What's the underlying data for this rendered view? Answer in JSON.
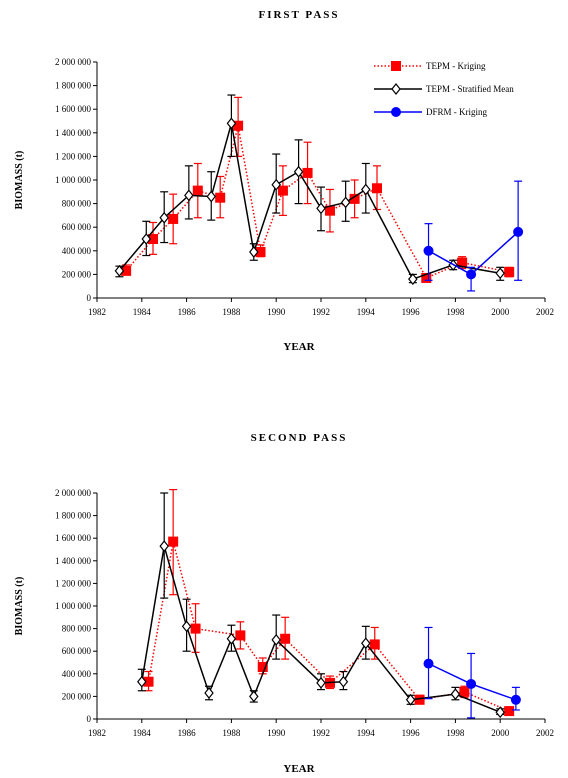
{
  "chart_data": [
    {
      "type": "line",
      "title": "FIRST PASS",
      "xlabel": "YEAR",
      "ylabel": "BIOMASS  (t)",
      "xlim": [
        1982,
        2002
      ],
      "ylim": [
        0,
        2000000
      ],
      "xticks": [
        1982,
        1984,
        1986,
        1988,
        1990,
        1992,
        1994,
        1996,
        1998,
        2000,
        2002
      ],
      "xtick_labels": [
        "1982",
        "1984",
        "1986",
        "1988",
        "1990",
        "1992",
        "1994",
        "1996",
        "1998",
        "2000",
        "2002"
      ],
      "yticks": [
        0,
        200000,
        400000,
        600000,
        800000,
        1000000,
        1200000,
        1400000,
        1600000,
        1800000,
        2000000
      ],
      "ytick_labels": [
        "0",
        "200 000",
        "400 000",
        "600 000",
        "800 000",
        "1 000 000",
        "1 200 000",
        "1 400 000",
        "1 600 000",
        "1 800 000",
        "2 000 000"
      ],
      "legend_position": "top-right",
      "series": [
        {
          "name": "TEPM  - Kriging",
          "color": "#ff0000",
          "line_style": "dotted",
          "marker": "square",
          "x": [
            1983.3,
            1984.5,
            1985.4,
            1986.5,
            1987.5,
            1988.3,
            1989.3,
            1990.3,
            1991.4,
            1992.4,
            1993.5,
            1994.5,
            1996.7,
            1998.3,
            2000.4
          ],
          "y": [
            230000,
            500000,
            670000,
            910000,
            850000,
            1460000,
            390000,
            910000,
            1060000,
            740000,
            840000,
            930000,
            170000,
            300000,
            220000
          ],
          "err_low": [
            200000,
            370000,
            460000,
            680000,
            680000,
            1200000,
            350000,
            700000,
            800000,
            560000,
            680000,
            750000,
            150000,
            250000,
            180000
          ],
          "err_high": [
            280000,
            640000,
            880000,
            1140000,
            1030000,
            1700000,
            450000,
            1120000,
            1320000,
            920000,
            1000000,
            1120000,
            200000,
            350000,
            260000
          ]
        },
        {
          "name": "TEPM  - Stratified Mean",
          "color": "#000000",
          "line_style": "solid",
          "marker": "diamond",
          "x": [
            1983.0,
            1984.2,
            1985.0,
            1986.1,
            1987.1,
            1988.0,
            1989.0,
            1990.0,
            1991.0,
            1992.0,
            1993.1,
            1994.0,
            1996.1,
            1997.9,
            2000.0
          ],
          "y": [
            230000,
            500000,
            680000,
            870000,
            860000,
            1480000,
            390000,
            960000,
            1070000,
            760000,
            810000,
            920000,
            160000,
            280000,
            210000
          ],
          "err_low": [
            180000,
            360000,
            470000,
            670000,
            660000,
            1200000,
            320000,
            720000,
            800000,
            570000,
            650000,
            720000,
            130000,
            240000,
            150000
          ],
          "err_high": [
            270000,
            650000,
            900000,
            1120000,
            1070000,
            1720000,
            460000,
            1220000,
            1340000,
            940000,
            990000,
            1140000,
            200000,
            320000,
            260000
          ]
        },
        {
          "name": "DFRM  - Kriging",
          "color": "#0000ff",
          "line_style": "solid",
          "marker": "circle",
          "x": [
            1996.8,
            1998.7,
            2000.8
          ],
          "y": [
            400000,
            200000,
            560000
          ],
          "err_low": [
            150000,
            60000,
            150000
          ],
          "err_high": [
            630000,
            260000,
            990000
          ]
        }
      ]
    },
    {
      "type": "line",
      "title": "SECOND PASS",
      "xlabel": "YEAR",
      "ylabel": "BIOMASS  (t)",
      "xlim": [
        1982,
        2002
      ],
      "ylim": [
        0,
        2000000
      ],
      "xticks": [
        1982,
        1984,
        1986,
        1988,
        1990,
        1992,
        1994,
        1996,
        1998,
        2000,
        2002
      ],
      "xtick_labels": [
        "1982",
        "1984",
        "1986",
        "1988",
        "1990",
        "1992",
        "1994",
        "1996",
        "1998",
        "2000",
        "2002"
      ],
      "yticks": [
        0,
        200000,
        400000,
        600000,
        800000,
        1000000,
        1200000,
        1400000,
        1600000,
        1800000,
        2000000
      ],
      "ytick_labels": [
        "0",
        "200 000",
        "400 000",
        "600 000",
        "800 000",
        "1 000 000",
        "1 200 000",
        "1 400 000",
        "1 600 000",
        "1 800 000",
        "2 000 000"
      ],
      "series": [
        {
          "name": "TEPM  - Kriging",
          "color": "#ff0000",
          "line_style": "dotted",
          "marker": "square",
          "x": [
            1984.3,
            1985.4,
            1986.4,
            1988.4,
            1989.4,
            1990.4,
            1992.4,
            1994.4,
            1996.4,
            1998.4,
            2000.4
          ],
          "y": [
            330000,
            1570000,
            800000,
            740000,
            460000,
            710000,
            320000,
            660000,
            170000,
            240000,
            70000
          ],
          "err_low": [
            250000,
            1100000,
            590000,
            620000,
            400000,
            530000,
            270000,
            530000,
            140000,
            190000,
            50000
          ],
          "err_high": [
            420000,
            2030000,
            1020000,
            860000,
            540000,
            900000,
            380000,
            810000,
            210000,
            290000,
            100000
          ]
        },
        {
          "name": "TEPM  - Stratified Mean",
          "color": "#000000",
          "line_style": "solid",
          "marker": "diamond",
          "x": [
            1984.0,
            1985.0,
            1986.0,
            1987.0,
            1988.0,
            1989.0,
            1990.0,
            1992.0,
            1993.0,
            1994.0,
            1996.0,
            1998.0,
            2000.0
          ],
          "y": [
            330000,
            1530000,
            820000,
            230000,
            710000,
            200000,
            700000,
            320000,
            330000,
            670000,
            170000,
            220000,
            60000
          ],
          "err_low": [
            250000,
            1070000,
            600000,
            170000,
            600000,
            150000,
            530000,
            260000,
            260000,
            530000,
            130000,
            170000,
            40000
          ],
          "err_high": [
            440000,
            2000000,
            1060000,
            290000,
            830000,
            250000,
            920000,
            400000,
            420000,
            820000,
            210000,
            280000,
            90000
          ]
        },
        {
          "name": "DFRM  - Kriging",
          "color": "#0000ff",
          "line_style": "solid",
          "marker": "circle",
          "x": [
            1996.8,
            1998.7,
            2000.7
          ],
          "y": [
            490000,
            310000,
            170000
          ],
          "err_low": [
            180000,
            10000,
            80000
          ],
          "err_high": [
            810000,
            580000,
            280000
          ]
        }
      ]
    }
  ]
}
